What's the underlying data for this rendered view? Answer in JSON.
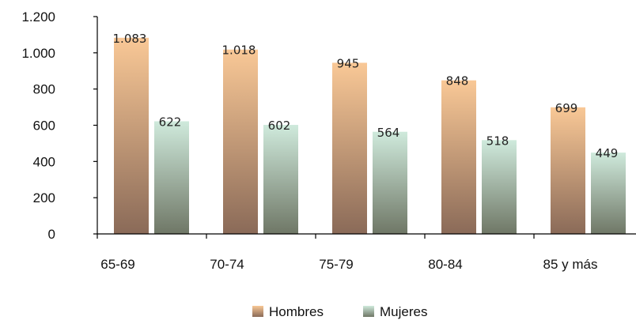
{
  "chart_data": {
    "type": "bar",
    "categories": [
      "65-69",
      "70-74",
      "75-79",
      "80-84",
      "85 y más"
    ],
    "series": [
      {
        "name": "Hombres",
        "values": [
          1083,
          1018,
          945,
          848,
          699
        ],
        "labels": [
          "1.083",
          "1.018",
          "945",
          "848",
          "699"
        ],
        "color_top": "#f9c896",
        "color_bottom": "#8a6a58"
      },
      {
        "name": "Mujeres",
        "values": [
          622,
          602,
          564,
          518,
          449
        ],
        "labels": [
          "622",
          "602",
          "564",
          "518",
          "449"
        ],
        "color_top": "#cfeadc",
        "color_bottom": "#6f7766"
      }
    ],
    "ylim": [
      0,
      1200
    ],
    "yticks": [
      0,
      200,
      400,
      600,
      800,
      1000,
      1200
    ],
    "ytick_labels": [
      "0",
      "200",
      "400",
      "600",
      "800",
      "1.000",
      "1.200"
    ],
    "grid": false,
    "legend": "bottom-center"
  }
}
